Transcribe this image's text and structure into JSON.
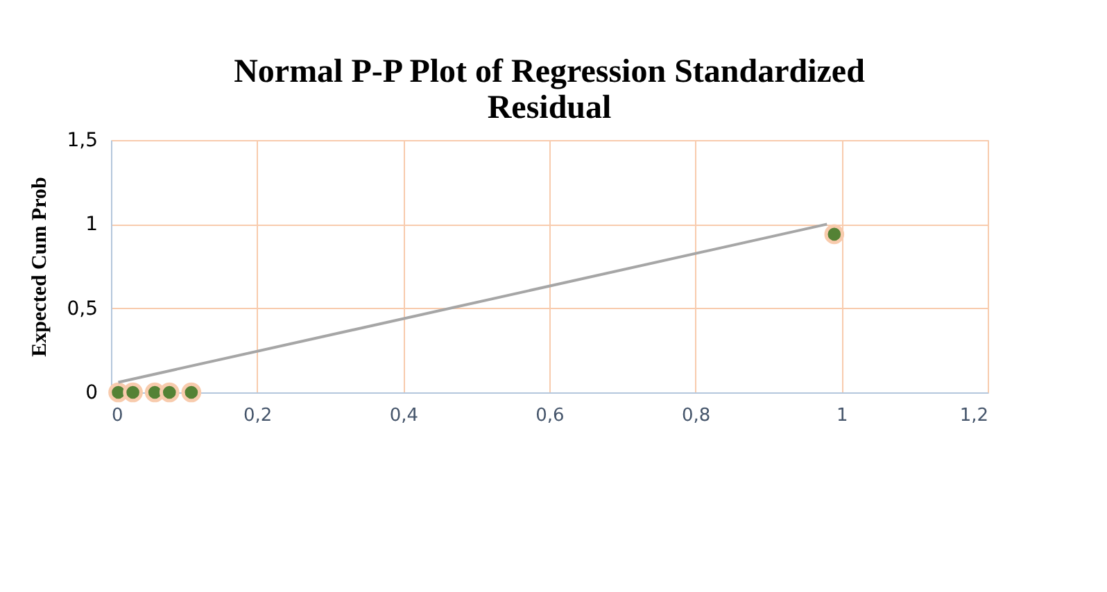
{
  "chart_data": {
    "type": "scatter",
    "title": "Normal P-P Plot of Regression Standardized Residual",
    "ylabel": "Expected Cum Prob",
    "series": [
      {
        "color": "#548235",
        "x": [
          0.01,
          0.03,
          0.06,
          0.08,
          0.11,
          0.99
        ],
        "values": [
          0.0,
          0.0,
          0.0,
          0.0,
          0.0,
          0.94
        ],
        "marker": "circle"
      },
      {
        "type": "line",
        "color": "#a6a6a6",
        "x": [
          0.01,
          0.98
        ],
        "values": [
          0.06,
          1.0
        ],
        "marker": "none"
      }
    ],
    "xlim": [
      0,
      1.2
    ],
    "xticks": [
      0,
      {
        "value": 0.2,
        "label": "0,2"
      },
      {
        "value": 0.4,
        "label": "0,4"
      },
      {
        "value": 0.6,
        "label": "0,6"
      },
      {
        "value": 0.8,
        "label": "0,8"
      },
      1,
      {
        "value": 1.2,
        "label": "1,2"
      }
    ],
    "ylim": [
      0,
      1.5
    ],
    "yticks": [
      0,
      {
        "value": 0.5,
        "label": "0,5"
      },
      1,
      {
        "value": 1.5,
        "label": "1,5"
      }
    ],
    "grid": true
  }
}
